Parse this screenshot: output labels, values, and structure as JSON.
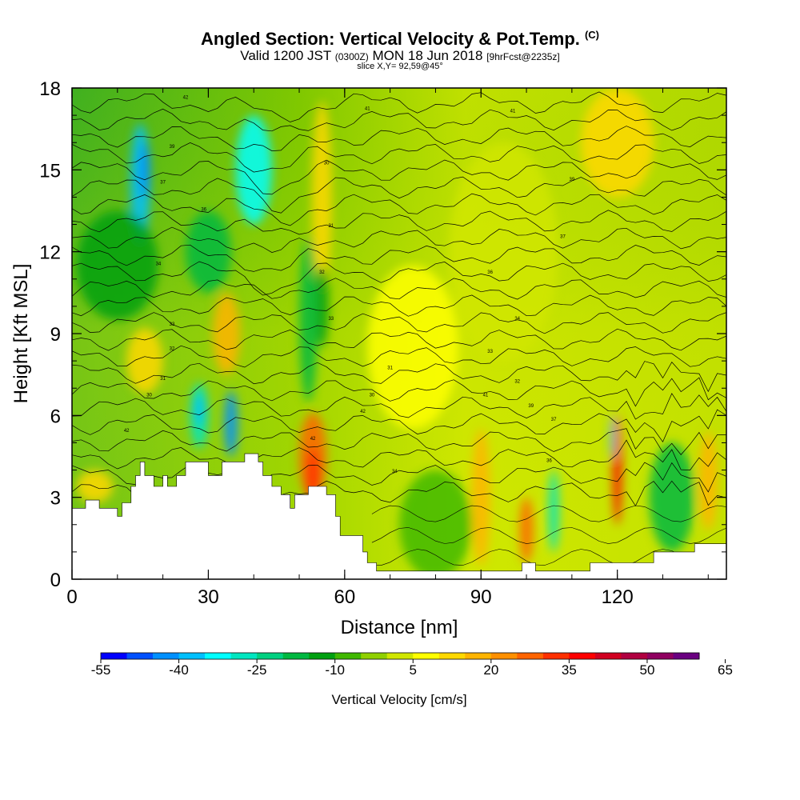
{
  "title": {
    "main": "Angled Section: Vertical Velocity & Pot.Temp.",
    "copyright": "(C)",
    "valid_prefix": "Valid 1200 JST",
    "valid_utc": "(0300Z)",
    "valid_date": "MON 18 Jun 2018",
    "forecast": "[9hrFcst@2235z]",
    "slice": "slice X,Y= 92,59@45°"
  },
  "chart_data": {
    "type": "heatmap",
    "xlabel": "Distance [nm]",
    "ylabel": "Height [Kft MSL]",
    "xlim": [
      0,
      144
    ],
    "ylim": [
      0,
      18
    ],
    "x_ticks": [
      0,
      30,
      60,
      90,
      120
    ],
    "y_ticks": [
      0,
      3,
      6,
      9,
      12,
      15,
      18
    ],
    "colorbar": {
      "label": "Vertical Velocity [cm/s]",
      "min": -55,
      "step": 5,
      "tick_values": [
        -55,
        -40,
        -25,
        -10,
        5,
        20,
        35,
        50,
        65
      ],
      "colors": [
        "#0000ff",
        "#0050ff",
        "#0090ff",
        "#00c0ff",
        "#00ffff",
        "#00e6c0",
        "#00d080",
        "#00b840",
        "#00a010",
        "#40b800",
        "#90d000",
        "#d0e600",
        "#ffff00",
        "#ffd800",
        "#ffb400",
        "#ff9000",
        "#ff6400",
        "#ff3000",
        "#ff0000",
        "#d00020",
        "#b00040",
        "#900060",
        "#6a0080"
      ]
    },
    "terrain_kft": [
      [
        0,
        2.6
      ],
      [
        3,
        2.6
      ],
      [
        3,
        2.9
      ],
      [
        6,
        2.9
      ],
      [
        6,
        2.6
      ],
      [
        10,
        2.6
      ],
      [
        10,
        2.3
      ],
      [
        11,
        2.3
      ],
      [
        11,
        2.8
      ],
      [
        13,
        2.8
      ],
      [
        13,
        3.4
      ],
      [
        14,
        3.4
      ],
      [
        14,
        3.8
      ],
      [
        15,
        3.8
      ],
      [
        15,
        4.3
      ],
      [
        16,
        4.3
      ],
      [
        16,
        3.8
      ],
      [
        18,
        3.8
      ],
      [
        18,
        3.4
      ],
      [
        20,
        3.4
      ],
      [
        20,
        3.8
      ],
      [
        21,
        3.8
      ],
      [
        21,
        3.4
      ],
      [
        23,
        3.4
      ],
      [
        23,
        3.8
      ],
      [
        25,
        3.8
      ],
      [
        25,
        4.3
      ],
      [
        30,
        4.3
      ],
      [
        30,
        3.8
      ],
      [
        33,
        3.8
      ],
      [
        33,
        4.3
      ],
      [
        38,
        4.3
      ],
      [
        38,
        4.6
      ],
      [
        41,
        4.6
      ],
      [
        41,
        4.3
      ],
      [
        42,
        4.3
      ],
      [
        42,
        3.8
      ],
      [
        44,
        3.8
      ],
      [
        44,
        3.4
      ],
      [
        46,
        3.4
      ],
      [
        46,
        3.1
      ],
      [
        48,
        3.1
      ],
      [
        48,
        2.6
      ],
      [
        49,
        2.6
      ],
      [
        49,
        3.1
      ],
      [
        52,
        3.1
      ],
      [
        52,
        3.4
      ],
      [
        56,
        3.4
      ],
      [
        56,
        3.1
      ],
      [
        58,
        3.1
      ],
      [
        58,
        2.3
      ],
      [
        59,
        2.3
      ],
      [
        59,
        1.6
      ],
      [
        64,
        1.6
      ],
      [
        64,
        1.0
      ],
      [
        65,
        1.0
      ],
      [
        65,
        0.6
      ],
      [
        67,
        0.6
      ],
      [
        67,
        0.3
      ],
      [
        99,
        0.3
      ],
      [
        99,
        0.6
      ],
      [
        102,
        0.6
      ],
      [
        102,
        0.3
      ],
      [
        114,
        0.3
      ],
      [
        114,
        0.6
      ],
      [
        128,
        0.6
      ],
      [
        128,
        1.0
      ],
      [
        137,
        1.0
      ],
      [
        137,
        1.3
      ],
      [
        144,
        1.3
      ]
    ],
    "contour_labels": [
      "42",
      "41",
      "39",
      "37",
      "36",
      "34",
      "33",
      "32",
      "31",
      "30"
    ]
  }
}
